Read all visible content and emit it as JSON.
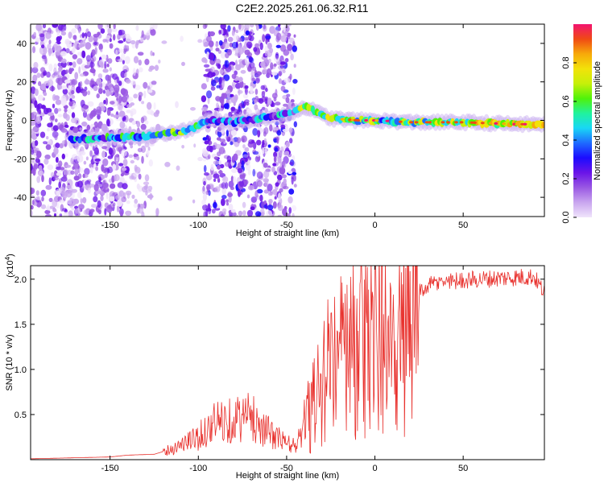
{
  "title": "C2E2.2025.261.06.32.R11",
  "colors": {
    "snr_line": "#e8302c",
    "colormap": [
      "#f0e4fb",
      "#c9a6ef",
      "#9a58e3",
      "#6a14e8",
      "#1c0cff",
      "#1e6bff",
      "#19d7f5",
      "#20f29e",
      "#4ff20a",
      "#c6f00a",
      "#f2e20a",
      "#f7a90a",
      "#f04a14",
      "#f21470"
    ]
  },
  "chart_data": [
    {
      "type": "heatmap",
      "xlabel": "Height of straight line (km)",
      "ylabel": "Frequency (Hz)",
      "xlim": [
        -195,
        96
      ],
      "ylim": [
        -50,
        50
      ],
      "x_ticks": [
        -150,
        -100,
        -50,
        0,
        50
      ],
      "y_ticks": [
        -40,
        -20,
        0,
        20,
        40
      ],
      "colorbar": {
        "label": "Normalized spectral amplitude",
        "range": [
          0,
          1
        ],
        "ticks": [
          "0.0",
          "0.2",
          "0.4",
          "0.6",
          "0.8"
        ]
      },
      "ridge_frequency": [
        [
          -170,
          -10
        ],
        [
          -150,
          -9
        ],
        [
          -130,
          -8
        ],
        [
          -110,
          -6
        ],
        [
          -100,
          -3
        ],
        [
          -95,
          0
        ],
        [
          -80,
          -1
        ],
        [
          -65,
          1
        ],
        [
          -50,
          3
        ],
        [
          -42,
          6
        ],
        [
          -38,
          7
        ],
        [
          -35,
          5
        ],
        [
          -30,
          3
        ],
        [
          -25,
          1
        ],
        [
          -10,
          0
        ],
        [
          0,
          0
        ],
        [
          20,
          -1
        ],
        [
          50,
          -1
        ],
        [
          80,
          -2
        ],
        [
          96,
          -2
        ]
      ]
    },
    {
      "type": "line",
      "xlabel": "Height of straight line (km)",
      "ylabel": "SNR (10 * v/v)",
      "y_multiplier": "(x10",
      "y_multiplier_exp": "4",
      "y_multiplier_close": ")",
      "xlim": [
        -195,
        96
      ],
      "ylim": [
        0,
        2.15
      ],
      "x_ticks": [
        -150,
        -100,
        -50,
        0,
        50
      ],
      "y_ticks": [
        "0.5",
        "1.0",
        "1.5",
        "2.0"
      ],
      "series": [
        {
          "envelope": [
            [
              -195,
              0.01
            ],
            [
              -150,
              0.03
            ],
            [
              -140,
              0.05
            ],
            [
              -125,
              0.06
            ],
            [
              -115,
              0.12
            ],
            [
              -100,
              0.25
            ],
            [
              -90,
              0.42
            ],
            [
              -80,
              0.45
            ],
            [
              -70,
              0.48
            ],
            [
              -60,
              0.3
            ],
            [
              -50,
              0.18
            ],
            [
              -45,
              0.15
            ],
            [
              -40,
              0.35
            ],
            [
              -35,
              0.6
            ],
            [
              -30,
              0.85
            ],
            [
              -25,
              1.0
            ],
            [
              -20,
              1.1
            ],
            [
              -15,
              1.15
            ],
            [
              -10,
              1.2
            ],
            [
              -5,
              1.3
            ],
            [
              0,
              1.35
            ],
            [
              5,
              1.35
            ],
            [
              10,
              1.4
            ],
            [
              15,
              1.55
            ],
            [
              20,
              1.72
            ],
            [
              25,
              1.85
            ],
            [
              30,
              1.93
            ],
            [
              40,
              1.98
            ],
            [
              60,
              2.0
            ],
            [
              80,
              2.02
            ],
            [
              90,
              2.03
            ],
            [
              96,
              1.85
            ]
          ]
        }
      ]
    }
  ]
}
